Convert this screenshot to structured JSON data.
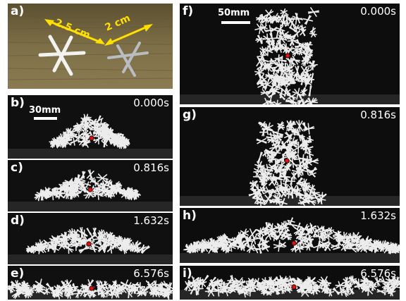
{
  "panel_a": {
    "label": "a)",
    "size_large": "2.5 cm",
    "size_small": "2 cm"
  },
  "left_column": {
    "scalebar": "30mm",
    "panels": [
      {
        "label": "b)",
        "time": "0.000s"
      },
      {
        "label": "c)",
        "time": "0.816s"
      },
      {
        "label": "d)",
        "time": "1.632s"
      },
      {
        "label": "e)",
        "time": "6.576s"
      }
    ]
  },
  "right_column": {
    "scalebar": "50mm",
    "panels": [
      {
        "label": "f)",
        "time": "0.000s"
      },
      {
        "label": "g)",
        "time": "0.816s"
      },
      {
        "label": "h)",
        "time": "1.632s"
      },
      {
        "label": "i)",
        "time": "6.576s"
      }
    ]
  },
  "colors": {
    "background": "#0d0d0d",
    "particles": "#ffffff",
    "marker": "#e01010",
    "annotation": "#ffe000"
  }
}
